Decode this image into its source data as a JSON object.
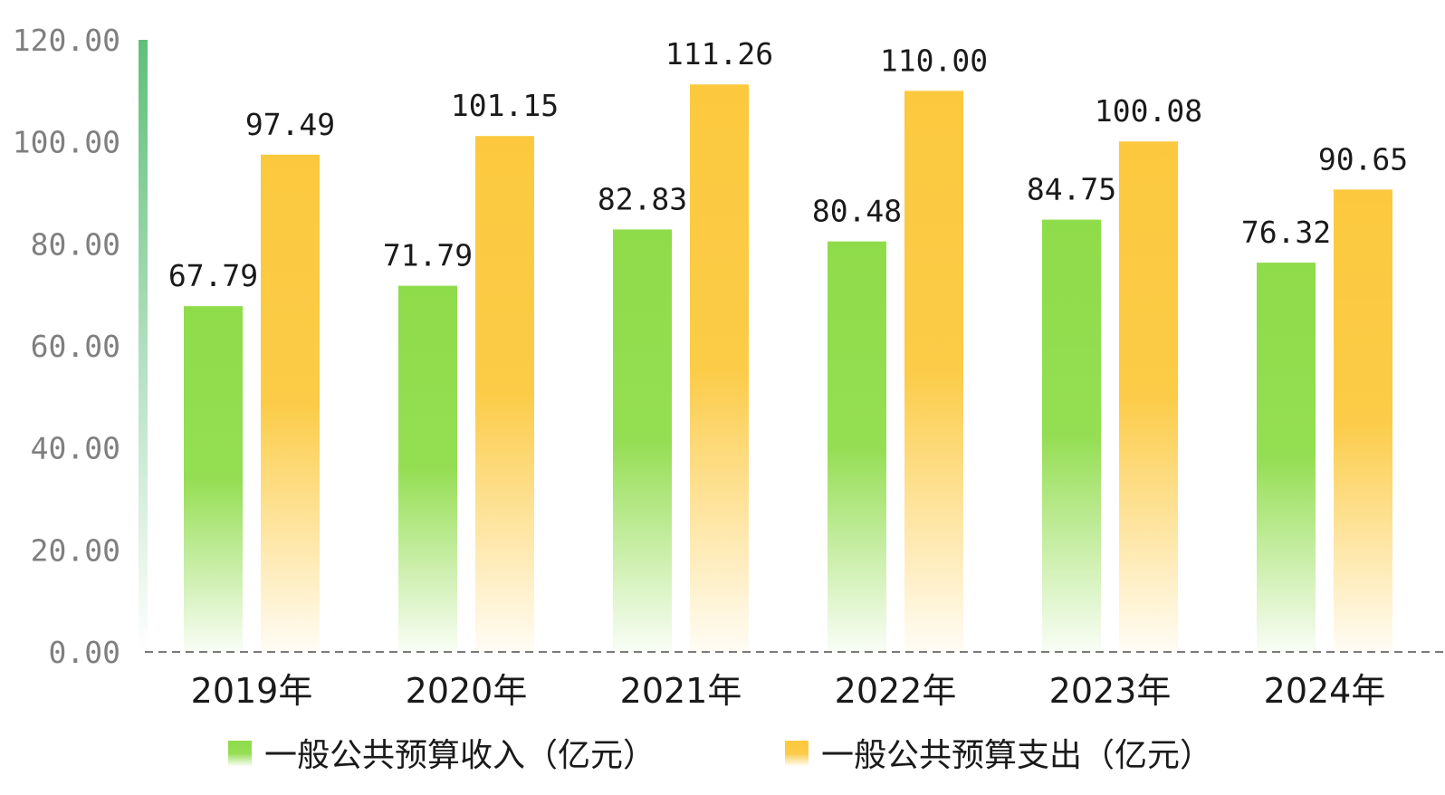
{
  "chart_data": {
    "type": "bar",
    "title": "",
    "xlabel": "",
    "ylabel": "",
    "categories": [
      "2019年",
      "2020年",
      "2021年",
      "2022年",
      "2023年",
      "2024年"
    ],
    "series": [
      {
        "name": "一般公共预算收入（亿元）",
        "values": [
          67.79,
          71.79,
          82.83,
          80.48,
          84.75,
          76.32
        ],
        "value_labels": [
          "67.79",
          "71.79",
          "82.83",
          "80.48",
          "84.75",
          "76.32"
        ],
        "color": "#8fdc4a"
      },
      {
        "name": "一般公共预算支出（亿元）",
        "values": [
          97.49,
          101.15,
          111.26,
          110.0,
          100.08,
          90.65
        ],
        "value_labels": [
          "97.49",
          "101.15",
          "111.26",
          "110.00",
          "100.08",
          "90.65"
        ],
        "color": "#fcc93e"
      }
    ],
    "ylim": [
      0,
      120
    ],
    "y_ticks": [
      0,
      20,
      40,
      60,
      80,
      100,
      120
    ],
    "y_tick_labels": [
      "0.00",
      "20.00",
      "40.00",
      "60.00",
      "80.00",
      "100.00",
      "120.00"
    ],
    "grid": false,
    "legend_position": "bottom",
    "axis_color": "#5fbf7a",
    "baseline_style": "dashed"
  }
}
